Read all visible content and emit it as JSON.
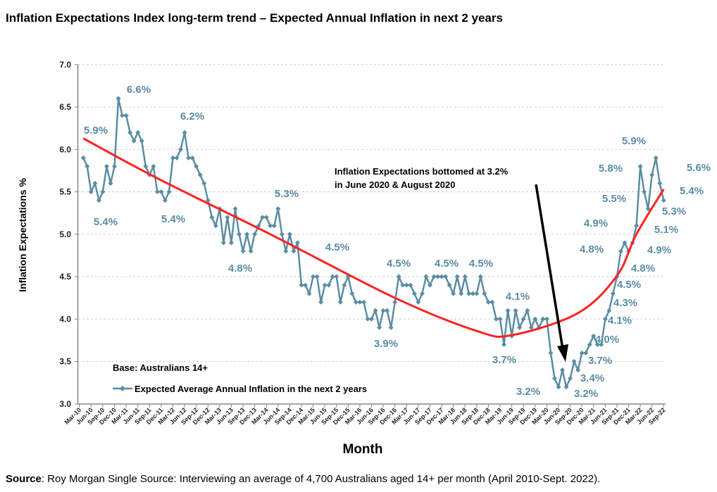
{
  "chart_data": {
    "type": "line",
    "title": "Inflation Expectations Index long-term trend – Expected Annual Inflation in next 2 years",
    "xlabel": "Month",
    "ylabel": "Inflation Expectations %",
    "ylim": [
      3.0,
      7.0
    ],
    "yticks": [
      "3.0",
      "3.5",
      "4.0",
      "4.5",
      "5.0",
      "5.5",
      "6.0",
      "6.5",
      "7.0"
    ],
    "grid": true,
    "legend_placement": "bottom-left",
    "xticks": [
      "Mar-10",
      "Jun-10",
      "Sep-10",
      "Dec-10",
      "Mar-11",
      "Jun-11",
      "Sep-11",
      "Dec-11",
      "Mar-12",
      "Jun-12",
      "Sep-12",
      "Dec-12",
      "Mar-13",
      "Jun-13",
      "Sep-13",
      "Dec-13",
      "Mar-14",
      "Jun-14",
      "Sep-14",
      "Dec-14",
      "Mar-15",
      "Jun-15",
      "Sep-15",
      "Dec-15",
      "Mar-16",
      "Jun-16",
      "Sep-16",
      "Dec-16",
      "Mar-17",
      "Jun-17",
      "Sep-17",
      "Dec-17",
      "Mar-18",
      "Jun-18",
      "Sep-18",
      "Dec-18",
      "Mar-19",
      "Jun-19",
      "Sep-19",
      "Dec-19",
      "Mar-20",
      "Jun-20",
      "Sep-20",
      "Dec-20",
      "Mar-21",
      "Jun-21",
      "Sep-21",
      "Dec-21",
      "Mar-22",
      "Jun-22",
      "Sep-22"
    ],
    "x": [
      "Apr-10",
      "May-10",
      "Jun-10",
      "Jul-10",
      "Aug-10",
      "Sep-10",
      "Oct-10",
      "Nov-10",
      "Dec-10",
      "Jan-11",
      "Feb-11",
      "Mar-11",
      "Apr-11",
      "May-11",
      "Jun-11",
      "Jul-11",
      "Aug-11",
      "Sep-11",
      "Oct-11",
      "Nov-11",
      "Dec-11",
      "Jan-12",
      "Feb-12",
      "Mar-12",
      "Apr-12",
      "May-12",
      "Jun-12",
      "Jul-12",
      "Aug-12",
      "Sep-12",
      "Oct-12",
      "Nov-12",
      "Dec-12",
      "Jan-13",
      "Feb-13",
      "Mar-13",
      "Apr-13",
      "May-13",
      "Jun-13",
      "Jul-13",
      "Aug-13",
      "Sep-13",
      "Oct-13",
      "Nov-13",
      "Dec-13",
      "Jan-14",
      "Feb-14",
      "Mar-14",
      "Apr-14",
      "May-14",
      "Jun-14",
      "Jul-14",
      "Aug-14",
      "Sep-14",
      "Oct-14",
      "Nov-14",
      "Dec-14",
      "Jan-15",
      "Feb-15",
      "Mar-15",
      "Apr-15",
      "May-15",
      "Jun-15",
      "Jul-15",
      "Aug-15",
      "Sep-15",
      "Oct-15",
      "Nov-15",
      "Dec-15",
      "Jan-16",
      "Feb-16",
      "Mar-16",
      "Apr-16",
      "May-16",
      "Jun-16",
      "Jul-16",
      "Aug-16",
      "Sep-16",
      "Oct-16",
      "Nov-16",
      "Dec-16",
      "Jan-17",
      "Feb-17",
      "Mar-17",
      "Apr-17",
      "May-17",
      "Jun-17",
      "Jul-17",
      "Aug-17",
      "Sep-17",
      "Oct-17",
      "Nov-17",
      "Dec-17",
      "Jan-18",
      "Feb-18",
      "Mar-18",
      "Apr-18",
      "May-18",
      "Jun-18",
      "Jul-18",
      "Aug-18",
      "Sep-18",
      "Oct-18",
      "Nov-18",
      "Dec-18",
      "Jan-19",
      "Feb-19",
      "Mar-19",
      "Apr-19",
      "May-19",
      "Jun-19",
      "Jul-19",
      "Aug-19",
      "Sep-19",
      "Oct-19",
      "Nov-19",
      "Dec-19",
      "Jan-20",
      "Feb-20",
      "Mar-20",
      "Apr-20",
      "May-20",
      "Jun-20",
      "Jul-20",
      "Aug-20",
      "Sep-20",
      "Oct-20",
      "Nov-20",
      "Dec-20",
      "Jan-21",
      "Feb-21",
      "Mar-21",
      "Apr-21",
      "May-21",
      "Jun-21",
      "Jul-21",
      "Aug-21",
      "Sep-21",
      "Oct-21",
      "Nov-21",
      "Dec-21",
      "Jan-22",
      "Feb-22",
      "Mar-22",
      "Apr-22",
      "May-22",
      "Jun-22",
      "Jul-22",
      "Aug-22",
      "Sep-22"
    ],
    "series": [
      {
        "name": "Expected Average Annual Inflation in the next 2 years",
        "color": "#5b8da3",
        "marker": "diamond",
        "values": [
          5.9,
          5.8,
          5.5,
          5.6,
          5.4,
          5.5,
          5.8,
          5.6,
          5.8,
          6.6,
          6.4,
          6.4,
          6.2,
          6.1,
          6.2,
          6.1,
          5.8,
          5.7,
          5.8,
          5.5,
          5.5,
          5.4,
          5.5,
          5.9,
          5.9,
          6.0,
          6.2,
          5.9,
          5.9,
          5.8,
          5.7,
          5.6,
          5.4,
          5.2,
          5.1,
          5.3,
          4.9,
          5.2,
          4.9,
          5.3,
          5.0,
          4.8,
          5.0,
          4.8,
          5.0,
          5.1,
          5.2,
          5.2,
          5.1,
          5.1,
          5.3,
          5.0,
          4.8,
          5.0,
          4.8,
          4.9,
          4.4,
          4.4,
          4.3,
          4.5,
          4.5,
          4.2,
          4.4,
          4.4,
          4.5,
          4.5,
          4.2,
          4.4,
          4.5,
          4.3,
          4.2,
          4.2,
          4.2,
          4.0,
          4.0,
          4.1,
          3.9,
          4.1,
          4.1,
          3.9,
          4.2,
          4.5,
          4.4,
          4.4,
          4.4,
          4.3,
          4.2,
          4.3,
          4.5,
          4.4,
          4.5,
          4.5,
          4.5,
          4.5,
          4.4,
          4.3,
          4.5,
          4.3,
          4.5,
          4.3,
          4.3,
          4.3,
          4.5,
          4.3,
          4.2,
          4.2,
          4.0,
          4.0,
          3.7,
          4.1,
          3.8,
          4.1,
          3.9,
          4.0,
          4.1,
          3.9,
          4.0,
          3.9,
          4.0,
          4.0,
          3.6,
          3.3,
          3.2,
          3.4,
          3.2,
          3.3,
          3.5,
          3.4,
          3.6,
          3.6,
          3.7,
          3.8,
          3.7,
          3.7,
          4.0,
          4.1,
          4.3,
          4.5,
          4.8,
          4.9,
          4.8,
          4.9,
          5.1,
          5.8,
          5.5,
          5.3,
          5.7,
          5.9,
          5.6,
          5.4
        ]
      },
      {
        "color": "#ff2222",
        "style": "trend",
        "x": [
          "Apr-10",
          "Nov-11",
          "Apr-14",
          "Dec-16",
          "Sep-18",
          "Jun-19",
          "Nov-20",
          "Sep-21",
          "Feb-22",
          "Sep-22"
        ],
        "values": [
          6.13,
          5.66,
          5.0,
          4.25,
          3.86,
          3.81,
          4.07,
          4.51,
          5.0,
          5.53
        ]
      }
    ],
    "data_labels": [
      "5.9%",
      "5.4%",
      "6.6%",
      "6.2%",
      "5.4%",
      "4.8%",
      "5.3%",
      "4.5%",
      "3.9%",
      "4.5%",
      "4.5%",
      "4.5%",
      "4.1%",
      "3.7%",
      "3.2%",
      "3.2%",
      "3.4%",
      "3.7%",
      "4.0%",
      "4.1%",
      "4.3%",
      "4.5%",
      "4.8%",
      "4.9%",
      "5.1%",
      "5.3%",
      "5.4%",
      "5.6%",
      "5.9%",
      "5.8%",
      "5.5%",
      "4.9%",
      "4.8%"
    ],
    "annotation": {
      "line1": "Inflation Expectations bottomed at 3.2%",
      "line2": "in June 2020 & August 2020"
    },
    "base_note": "Base: Australians 14+"
  },
  "source": {
    "label": "Source",
    "text": ": Roy Morgan Single Source: Interviewing an average of 4,700 Australians aged 14+ per month (April 2010-Sept. 2022)."
  }
}
